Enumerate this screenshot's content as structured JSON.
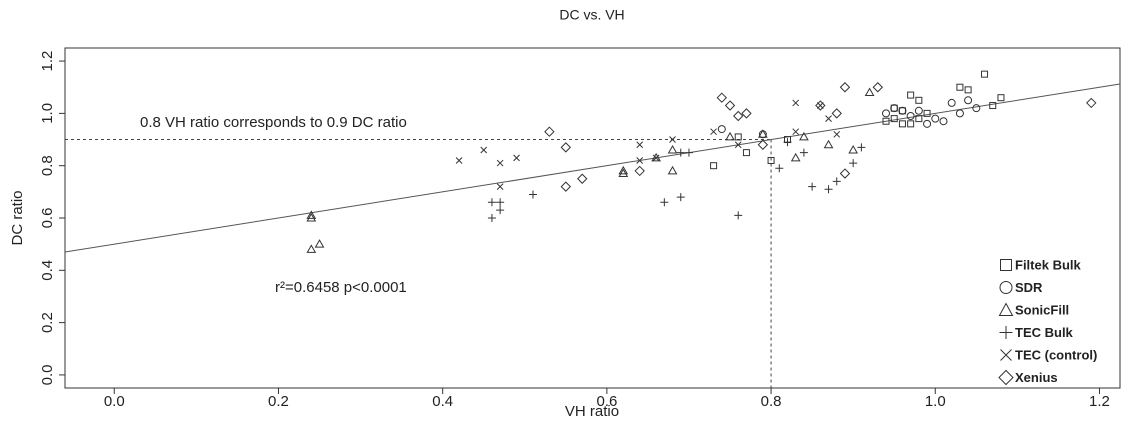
{
  "chart_data": {
    "type": "scatter",
    "title": "DC vs. VH",
    "x_label": "VH ratio",
    "y_label": "DC ratio",
    "xlim": [
      -0.06,
      1.225
    ],
    "ylim": [
      -0.05,
      1.25
    ],
    "xticks": [
      {
        "value": 0,
        "label": "0.0"
      },
      0.2,
      0.4,
      0.6,
      0.8,
      {
        "value": 1,
        "label": "1.0"
      },
      1.2
    ],
    "yticks": [
      {
        "value": 0,
        "label": "0.0"
      },
      0.2,
      0.4,
      0.6,
      0.8,
      {
        "value": 1,
        "label": "1.0"
      },
      1.2
    ],
    "legend_position": "bottom-right",
    "fit": {
      "slope": 0.5,
      "intercept": 0.5,
      "color": "#555555"
    },
    "reference": {
      "x": 0.8,
      "y": 0.9
    },
    "annotations": [
      "0.8 VH ratio corresponds to 0.9 DC ratio",
      "r²=0.6458  p<0.0001"
    ],
    "series": [
      {
        "name": "Filtek Bulk",
        "marker": "square",
        "color": "#333333",
        "x": [
          0.73,
          0.76,
          0.77,
          0.8,
          0.82,
          0.94,
          0.95,
          0.96,
          0.97,
          0.98,
          1.03,
          1.04,
          1.06,
          1.07,
          1.08,
          0.96,
          0.97,
          0.98,
          0.99,
          0.95
        ],
        "values": [
          0.8,
          0.91,
          0.85,
          0.82,
          0.9,
          0.97,
          0.98,
          0.96,
          1.07,
          1.05,
          1.1,
          1.09,
          1.15,
          1.03,
          1.06,
          1.01,
          0.96,
          0.98,
          1.0,
          1.02
        ]
      },
      {
        "name": "SDR",
        "marker": "circle",
        "color": "#333333",
        "x": [
          0.74,
          0.79,
          0.94,
          0.95,
          0.96,
          0.97,
          0.98,
          1.0,
          1.01,
          1.02,
          1.03,
          1.04,
          1.05,
          0.99
        ],
        "values": [
          0.94,
          0.92,
          1.0,
          1.02,
          1.01,
          0.99,
          1.01,
          0.98,
          0.97,
          1.04,
          1.0,
          1.05,
          1.02,
          0.96
        ]
      },
      {
        "name": "SonicFill",
        "marker": "triangle",
        "color": "#333333",
        "x": [
          0.24,
          0.24,
          0.24,
          0.25,
          0.62,
          0.62,
          0.66,
          0.68,
          0.68,
          0.75,
          0.79,
          0.83,
          0.84,
          0.87,
          0.9,
          0.92
        ],
        "values": [
          0.61,
          0.6,
          0.48,
          0.5,
          0.78,
          0.77,
          0.83,
          0.78,
          0.86,
          0.91,
          0.92,
          0.83,
          0.91,
          0.88,
          0.86,
          1.08
        ]
      },
      {
        "name": "TEC Bulk",
        "marker": "plus",
        "color": "#333333",
        "x": [
          0.46,
          0.46,
          0.47,
          0.47,
          0.51,
          0.67,
          0.69,
          0.69,
          0.7,
          0.76,
          0.81,
          0.82,
          0.84,
          0.85,
          0.87,
          0.88,
          0.9,
          0.91
        ],
        "values": [
          0.6,
          0.66,
          0.63,
          0.66,
          0.69,
          0.66,
          0.85,
          0.68,
          0.85,
          0.61,
          0.79,
          0.89,
          0.85,
          0.72,
          0.71,
          0.74,
          0.81,
          0.87
        ]
      },
      {
        "name": "TEC (control)",
        "marker": "x",
        "color": "#333333",
        "x": [
          0.42,
          0.45,
          0.47,
          0.47,
          0.49,
          0.64,
          0.64,
          0.66,
          0.68,
          0.73,
          0.76,
          0.83,
          0.83,
          0.86,
          0.87,
          0.88
        ],
        "values": [
          0.82,
          0.86,
          0.81,
          0.72,
          0.83,
          0.88,
          0.82,
          0.83,
          0.9,
          0.93,
          0.88,
          1.04,
          0.93,
          1.03,
          0.98,
          0.92
        ]
      },
      {
        "name": "Xenius",
        "marker": "diamond",
        "color": "#333333",
        "x": [
          0.53,
          0.55,
          0.55,
          0.57,
          0.64,
          0.74,
          0.75,
          0.76,
          0.77,
          0.86,
          0.88,
          0.89,
          0.89,
          0.93,
          1.19,
          0.79
        ],
        "values": [
          0.93,
          0.87,
          0.72,
          0.75,
          0.78,
          1.06,
          1.03,
          0.99,
          1.0,
          1.03,
          1.0,
          0.77,
          1.1,
          1.1,
          1.04,
          0.88
        ]
      }
    ]
  }
}
